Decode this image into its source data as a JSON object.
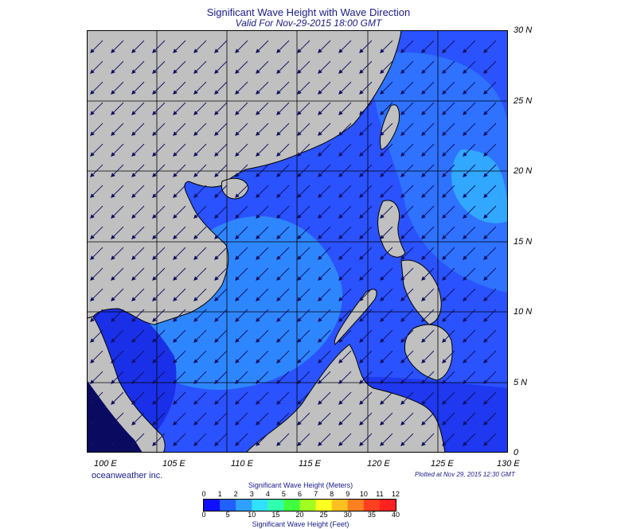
{
  "title": "Significant Wave Height with Wave Direction",
  "valid": "Valid For Nov-29-2015 18:00 GMT",
  "lat_labels": [
    "30 N",
    "25 N",
    "20 N",
    "15 N",
    "10 N",
    "5 N",
    "0"
  ],
  "lon_labels": [
    "100 E",
    "105 E",
    "110 E",
    "115 E",
    "120 E",
    "125 E",
    "130 E"
  ],
  "credit": "oceanweather inc.",
  "plotted": "Plotted at Nov 29, 2015 12:30 GMT",
  "legend": {
    "meters_title": "Significant Wave Height (Meters)",
    "feet_title": "Significant Wave Height (Feet)",
    "meters_ticks": [
      "0",
      "1",
      "2",
      "3",
      "4",
      "5",
      "6",
      "7",
      "8",
      "9",
      "10",
      "11",
      "12"
    ],
    "feet_ticks": [
      "0",
      "5",
      "10",
      "15",
      "20",
      "25",
      "30",
      "35",
      "40"
    ]
  },
  "colors": {
    "land": "#c0c0c0",
    "water_base": "#2a52ff",
    "water_light": "#2f8cff",
    "arrow": "#101060",
    "colorbar": [
      "#1010ff",
      "#2060ff",
      "#2fa0ff",
      "#30e0ff",
      "#30ffb0",
      "#40ff40",
      "#a0ff20",
      "#ffff20",
      "#ffc020",
      "#ff8020",
      "#ff4020",
      "#ff2020"
    ]
  },
  "map": {
    "lon_range": [
      100,
      130
    ],
    "lat_range": [
      0,
      30
    ],
    "wave_direction_icon": "arrow-southwest"
  }
}
